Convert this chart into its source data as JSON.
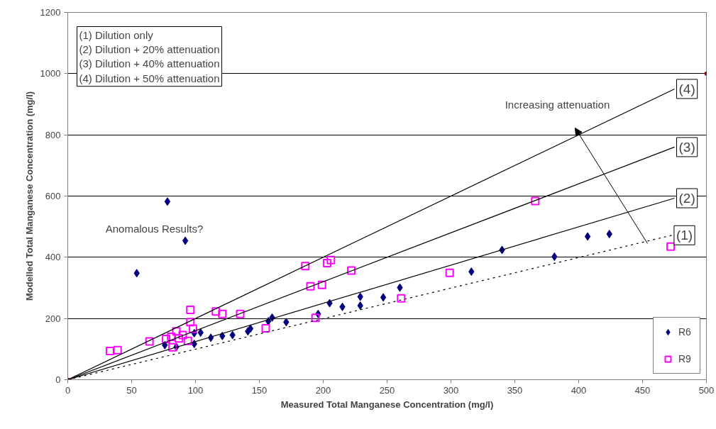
{
  "chart_data": {
    "type": "scatter",
    "xlabel": "Measured Total Manganese Concentration (mg/l)",
    "ylabel": "Modelled Total Manganese Concentration (mg/l)",
    "xlim": [
      0,
      500
    ],
    "xticks": [
      0,
      50,
      100,
      150,
      200,
      250,
      300,
      350,
      400,
      450,
      500
    ],
    "ylim": [
      0,
      1200
    ],
    "yticks": [
      0,
      200,
      400,
      600,
      800,
      1000,
      1200
    ],
    "grid": "y",
    "legend": "bottom right",
    "annotations": [
      "(1)  Dilution only",
      "(2) Dilution + 20% attenuation",
      "(3) Dilution + 40% attenuation",
      "(4) Dilution + 50% attenuation",
      "Anomalous Results?",
      "Increasing attenuation"
    ],
    "series": [
      {
        "name": "R6",
        "marker": "diamond",
        "color": "#000080",
        "x": [
          78,
          92,
          54,
          76,
          85,
          99,
          99,
          104,
          112,
          121,
          129,
          141,
          143,
          157,
          160,
          171,
          196,
          205,
          215,
          229,
          229,
          247,
          260,
          316,
          340,
          381,
          407,
          424
        ],
        "values": [
          582,
          454,
          348,
          113,
          107,
          117,
          152,
          154,
          137,
          143,
          146,
          158,
          167,
          191,
          203,
          188,
          215,
          250,
          238,
          271,
          242,
          269,
          301,
          353,
          424,
          402,
          468,
          476
        ]
      },
      {
        "name": "R9",
        "marker": "square",
        "color": "#ff00ff",
        "x": [
          33,
          39,
          64,
          96,
          96,
          98,
          85,
          77,
          81,
          87,
          90,
          82,
          94,
          116,
          121,
          135,
          155,
          186,
          190,
          199,
          203,
          206,
          222,
          194,
          261,
          366,
          299,
          472
        ],
        "values": [
          94,
          97,
          125,
          228,
          188,
          167,
          158,
          133,
          140,
          135,
          146,
          106,
          127,
          223,
          215,
          215,
          168,
          371,
          305,
          310,
          381,
          391,
          357,
          202,
          266,
          584,
          349,
          435
        ]
      },
      {
        "marker": "circle",
        "color": "#8b0000",
        "x": [
          0,
          500
        ],
        "values": [
          0,
          1000
        ]
      },
      {
        "name": "(1)",
        "type": "line",
        "line_style": "dotted",
        "color": "#000000",
        "x": [
          0,
          473
        ],
        "values": [
          0,
          472
        ]
      },
      {
        "name": "(2)",
        "type": "line",
        "line_style": "solid",
        "color": "#000000",
        "x": [
          0,
          475
        ],
        "values": [
          0,
          593
        ]
      },
      {
        "name": "(3)",
        "type": "line",
        "line_style": "solid",
        "color": "#000000",
        "x": [
          0,
          475
        ],
        "values": [
          0,
          760
        ]
      },
      {
        "name": "(4)",
        "type": "line",
        "line_style": "solid",
        "color": "#000000",
        "x": [
          0,
          475
        ],
        "values": [
          0,
          950
        ]
      }
    ]
  }
}
